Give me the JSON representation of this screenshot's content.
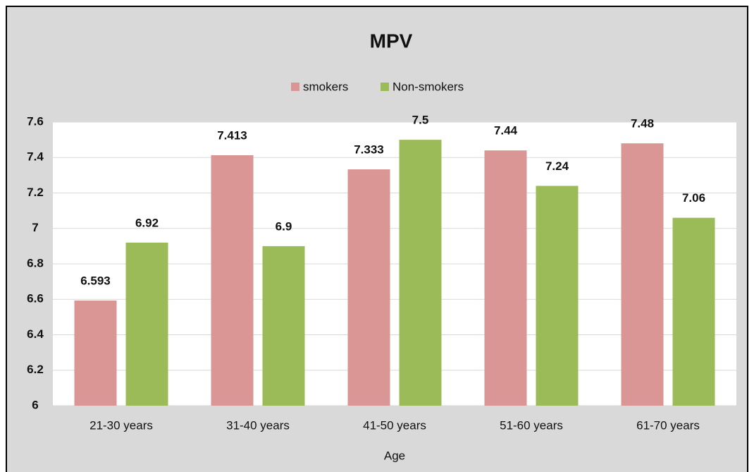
{
  "chart_data": {
    "type": "bar",
    "title": "MPV",
    "x_label": "Age",
    "categories": [
      "21-30 years",
      "31-40 years",
      "41-50 years",
      "51-60 years",
      "61-70 years"
    ],
    "series": [
      {
        "name": "smokers",
        "color": "#d99694",
        "values": [
          6.593,
          7.413,
          7.333,
          7.44,
          7.48
        ]
      },
      {
        "name": "Non-smokers",
        "color": "#9bbb59",
        "values": [
          6.92,
          6.9,
          7.5,
          7.24,
          7.06
        ]
      }
    ],
    "ylim": [
      6,
      7.6
    ],
    "yticks": [
      6,
      6.2,
      6.4,
      6.6,
      6.8,
      7,
      7.2,
      7.4,
      7.6
    ],
    "grid": true,
    "legend": "top",
    "data_labels": true
  }
}
